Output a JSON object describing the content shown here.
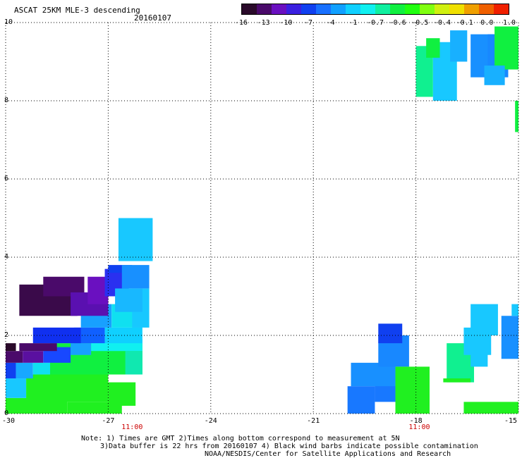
{
  "title": "ASCAT 25KM MLE-3 descending",
  "date": "20160107",
  "colorbar": {
    "labels": [
      "-16",
      "-13",
      "-10",
      "-7",
      "-4",
      "-1",
      "-0.7",
      "-0.6",
      "-0.5",
      "-0.4",
      "-0.1",
      "0.0",
      "1.0"
    ],
    "colors": [
      "#2a0a2a",
      "#4a0a6a",
      "#6a10c0",
      "#3a20e0",
      "#1040f0",
      "#1870ff",
      "#10a0ff",
      "#10d0ff",
      "#10f0f0",
      "#10f0a0",
      "#10f040",
      "#20ff10",
      "#80ff10",
      "#d0f010",
      "#f0e000",
      "#f0a000",
      "#f06000",
      "#f02000"
    ]
  },
  "map": {
    "lon_range": [
      -30,
      -15
    ],
    "lat_range": [
      0,
      10
    ],
    "x_ticks": [
      "-30",
      "-27",
      "-24",
      "-21",
      "-18",
      "-15"
    ],
    "y_ticks": [
      "0",
      "2",
      "4",
      "6",
      "8",
      "10"
    ],
    "time_labels": [
      "11:00",
      "11:00"
    ],
    "time_lons": [
      -26.3,
      -17.9
    ],
    "cells": [
      {
        "lon": [
          -30,
          -28.2
        ],
        "lat": [
          0.0,
          0.4
        ],
        "color": "#20f020"
      },
      {
        "lon": [
          -28.2,
          -26.6
        ],
        "lat": [
          0.0,
          0.3
        ],
        "color": "#20f020"
      },
      {
        "lon": [
          -30,
          -29.4
        ],
        "lat": [
          0.4,
          0.9
        ],
        "color": "#18c8ff"
      },
      {
        "lon": [
          -29.4,
          -27.0
        ],
        "lat": [
          0.3,
          1.0
        ],
        "color": "#20f020"
      },
      {
        "lon": [
          -27.0,
          -26.2
        ],
        "lat": [
          0.2,
          0.8
        ],
        "color": "#20f020"
      },
      {
        "lon": [
          -30,
          -29.7
        ],
        "lat": [
          0.9,
          1.3
        ],
        "color": "#1040f0"
      },
      {
        "lon": [
          -29.7,
          -29.2
        ],
        "lat": [
          0.9,
          1.3
        ],
        "color": "#18a8ff"
      },
      {
        "lon": [
          -29.2,
          -28.7
        ],
        "lat": [
          1.0,
          1.3
        ],
        "color": "#10e0f0"
      },
      {
        "lon": [
          -28.7,
          -26.0
        ],
        "lat": [
          1.0,
          1.8
        ],
        "color": "#10f040"
      },
      {
        "lon": [
          -26.5,
          -26.0
        ],
        "lat": [
          1.0,
          1.6
        ],
        "color": "#10e8b0"
      },
      {
        "lon": [
          -30,
          -29.5
        ],
        "lat": [
          1.3,
          1.6
        ],
        "color": "#4a0a6a"
      },
      {
        "lon": [
          -29.5,
          -28.9
        ],
        "lat": [
          1.3,
          1.6
        ],
        "color": "#5a10a0"
      },
      {
        "lon": [
          -28.9,
          -28.1
        ],
        "lat": [
          1.3,
          1.7
        ],
        "color": "#1848ff"
      },
      {
        "lon": [
          -28.1,
          -27.5
        ],
        "lat": [
          1.5,
          1.8
        ],
        "color": "#18a0ff"
      },
      {
        "lon": [
          -27.5,
          -26.0
        ],
        "lat": [
          1.6,
          1.9
        ],
        "color": "#10f0f0"
      },
      {
        "lon": [
          -30,
          -29.7
        ],
        "lat": [
          1.6,
          1.8
        ],
        "color": "#2a0a2a"
      },
      {
        "lon": [
          -29.6,
          -28.5
        ],
        "lat": [
          1.6,
          1.8
        ],
        "color": "#4a0a6a"
      },
      {
        "lon": [
          -28.0,
          -27.1
        ],
        "lat": [
          1.8,
          2.2
        ],
        "color": "#1060ff"
      },
      {
        "lon": [
          -27.1,
          -26.0
        ],
        "lat": [
          1.8,
          2.2
        ],
        "color": "#10d0ff"
      },
      {
        "lon": [
          -29.2,
          -27.8
        ],
        "lat": [
          1.8,
          2.2
        ],
        "color": "#1030f0"
      },
      {
        "lon": [
          -27.8,
          -26.9
        ],
        "lat": [
          2.2,
          2.8
        ],
        "color": "#18a0ff"
      },
      {
        "lon": [
          -26.9,
          -26.0
        ],
        "lat": [
          2.2,
          2.8
        ],
        "color": "#10e0f0"
      },
      {
        "lon": [
          -26.3,
          -25.8
        ],
        "lat": [
          2.2,
          3.2
        ],
        "color": "#18c8ff"
      },
      {
        "lon": [
          -29.6,
          -27.9
        ],
        "lat": [
          2.5,
          3.3
        ],
        "color": "#3a0a4a"
      },
      {
        "lon": [
          -28.9,
          -27.7
        ],
        "lat": [
          3.0,
          3.5
        ],
        "color": "#4a0a6a"
      },
      {
        "lon": [
          -28.1,
          -27.0
        ],
        "lat": [
          2.5,
          3.1
        ],
        "color": "#5a10b0"
      },
      {
        "lon": [
          -27.6,
          -27.0
        ],
        "lat": [
          2.8,
          3.5
        ],
        "color": "#6a10c0"
      },
      {
        "lon": [
          -27.1,
          -26.4
        ],
        "lat": [
          3.0,
          3.7
        ],
        "color": "#2a30f0"
      },
      {
        "lon": [
          -27.0,
          -26.3
        ],
        "lat": [
          3.6,
          3.8
        ],
        "color": "#1040f0"
      },
      {
        "lon": [
          -26.6,
          -25.8
        ],
        "lat": [
          3.2,
          3.8
        ],
        "color": "#1890ff"
      },
      {
        "lon": [
          -26.8,
          -26.0
        ],
        "lat": [
          2.6,
          3.2
        ],
        "color": "#18b8ff"
      },
      {
        "lon": [
          -26.7,
          -25.7
        ],
        "lat": [
          3.9,
          5.0
        ],
        "color": "#18c8ff"
      },
      {
        "lon": [
          -20.0,
          -19.2
        ],
        "lat": [
          0.0,
          0.7
        ],
        "color": "#1878ff"
      },
      {
        "lon": [
          -19.2,
          -18.6
        ],
        "lat": [
          0.3,
          0.8
        ],
        "color": "#1878ff"
      },
      {
        "lon": [
          -19.9,
          -18.6
        ],
        "lat": [
          0.7,
          1.3
        ],
        "color": "#1890ff"
      },
      {
        "lon": [
          -19.1,
          -18.2
        ],
        "lat": [
          1.2,
          2.0
        ],
        "color": "#1888ff"
      },
      {
        "lon": [
          -19.1,
          -18.4
        ],
        "lat": [
          1.8,
          2.3
        ],
        "color": "#1040f0"
      },
      {
        "lon": [
          -18.6,
          -17.6
        ],
        "lat": [
          0.0,
          1.2
        ],
        "color": "#20f020"
      },
      {
        "lon": [
          -18.4,
          -17.6
        ],
        "lat": [
          0.2,
          0.5
        ],
        "color": "#20f020"
      },
      {
        "lon": [
          -17.1,
          -16.3
        ],
        "lat": [
          0.8,
          1.8
        ],
        "color": "#10f090"
      },
      {
        "lon": [
          -16.4,
          -15.9
        ],
        "lat": [
          1.2,
          2.0
        ],
        "color": "#18c8ff"
      },
      {
        "lon": [
          -16.6,
          -15.8
        ],
        "lat": [
          1.5,
          2.2
        ],
        "color": "#18c8ff"
      },
      {
        "lon": [
          -16.4,
          -15.6
        ],
        "lat": [
          2.0,
          2.8
        ],
        "color": "#18c8ff"
      },
      {
        "lon": [
          -15.5,
          -15.0
        ],
        "lat": [
          1.4,
          2.5
        ],
        "color": "#1890ff"
      },
      {
        "lon": [
          -15.2,
          -15.0
        ],
        "lat": [
          2.5,
          2.8
        ],
        "color": "#18c8ff"
      },
      {
        "lon": [
          -16.6,
          -15.0
        ],
        "lat": [
          0.0,
          0.3
        ],
        "color": "#20f020"
      },
      {
        "lon": [
          -17.2,
          -16.4
        ],
        "lat": [
          0.8,
          0.9
        ],
        "color": "#20f020"
      },
      {
        "lon": [
          -18.0,
          -17.5
        ],
        "lat": [
          8.1,
          9.4
        ],
        "color": "#10f090"
      },
      {
        "lon": [
          -17.5,
          -16.8
        ],
        "lat": [
          8.0,
          9.5
        ],
        "color": "#18c8ff"
      },
      {
        "lon": [
          -17.7,
          -17.3
        ],
        "lat": [
          9.1,
          9.6
        ],
        "color": "#10f040"
      },
      {
        "lon": [
          -17.0,
          -16.5
        ],
        "lat": [
          9.0,
          9.8
        ],
        "color": "#18b0ff"
      },
      {
        "lon": [
          -16.4,
          -15.7
        ],
        "lat": [
          8.6,
          9.7
        ],
        "color": "#1890ff"
      },
      {
        "lon": [
          -15.9,
          -15.3
        ],
        "lat": [
          8.6,
          9.7
        ],
        "color": "#1888ff"
      },
      {
        "lon": [
          -15.7,
          -15.0
        ],
        "lat": [
          8.8,
          9.9
        ],
        "color": "#10f040"
      },
      {
        "lon": [
          -16.0,
          -15.4
        ],
        "lat": [
          8.4,
          8.9
        ],
        "color": "#18b0ff"
      },
      {
        "lon": [
          -15.1,
          -15.0
        ],
        "lat": [
          7.2,
          8.0
        ],
        "color": "#10f040"
      }
    ]
  },
  "notes": {
    "line1": "Note: 1) Times are GMT 2)Times along bottom correspond to measurement at 5N",
    "line2": "3)Data buffer is 22 hrs from 20160107 4) Black wind barbs indicate possible contamination",
    "line3": "NOAA/NESDIS/Center for Satellite Applications and Research"
  }
}
